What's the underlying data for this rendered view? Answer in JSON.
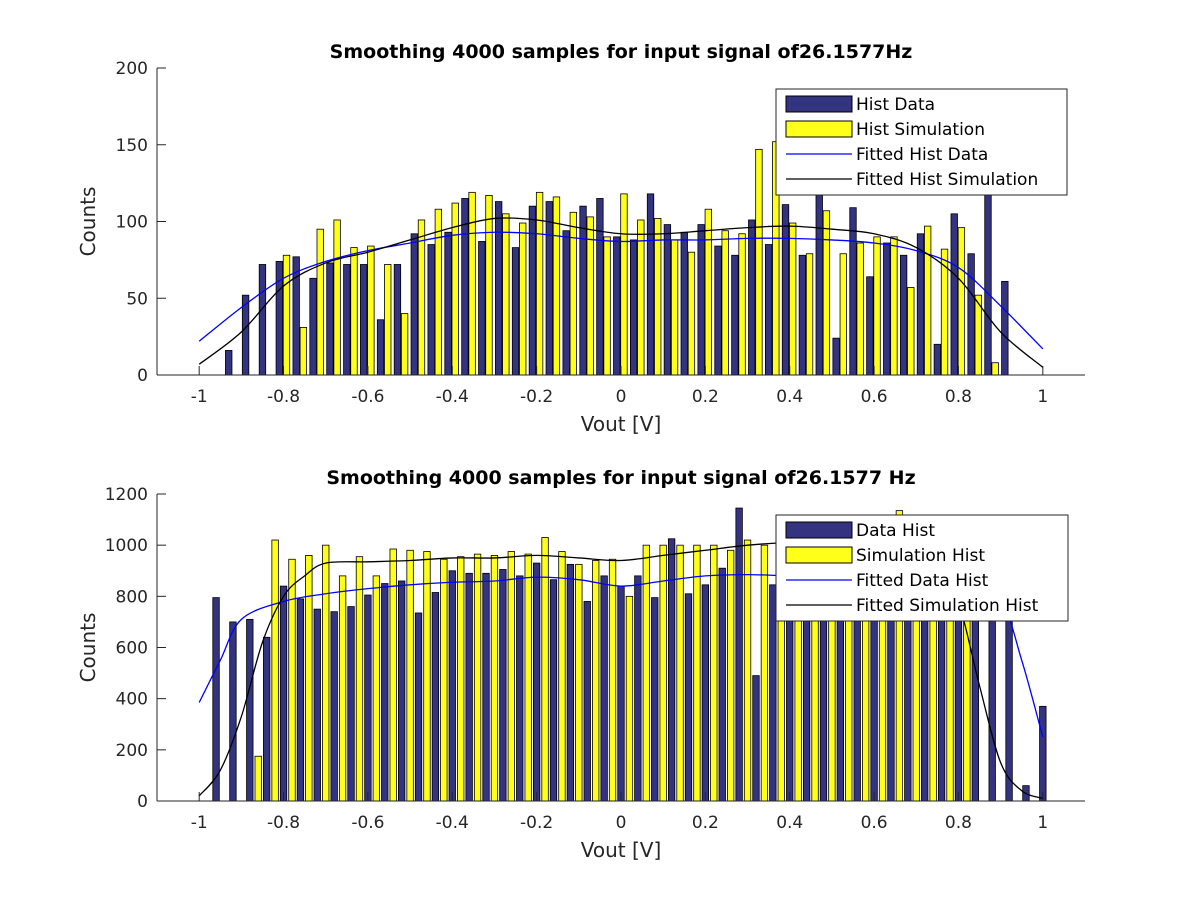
{
  "colors": {
    "data_bar": "#333380",
    "sim_bar": "#ffff1a",
    "fit_data": "#0000ff",
    "fit_sim": "#000000"
  },
  "chart_data": [
    {
      "type": "bar",
      "title": "Smoothing 4000 samples for input signal of26.1577Hz",
      "xlabel": "Vout [V]",
      "ylabel": "Counts",
      "xlim": [
        -1.1,
        1.1
      ],
      "ylim": [
        0,
        200
      ],
      "xticks": [
        -1,
        -0.8,
        -0.6,
        -0.4,
        -0.2,
        0,
        0.2,
        0.4,
        0.6,
        0.8,
        1
      ],
      "yticks": [
        0,
        50,
        100,
        150,
        200
      ],
      "legend_position": "top-right",
      "series": [
        {
          "name": "Hist Data",
          "kind": "bar",
          "x": [
            -0.93,
            -0.89,
            -0.85,
            -0.81,
            -0.77,
            -0.73,
            -0.69,
            -0.65,
            -0.61,
            -0.57,
            -0.53,
            -0.49,
            -0.45,
            -0.41,
            -0.37,
            -0.33,
            -0.29,
            -0.25,
            -0.21,
            -0.17,
            -0.13,
            -0.09,
            -0.05,
            -0.01,
            0.03,
            0.07,
            0.11,
            0.15,
            0.19,
            0.23,
            0.27,
            0.31,
            0.35,
            0.39,
            0.43,
            0.47,
            0.51,
            0.55,
            0.59,
            0.63,
            0.67,
            0.71,
            0.75,
            0.79,
            0.83,
            0.87,
            0.91
          ],
          "values": [
            16,
            52,
            72,
            74,
            77,
            63,
            73,
            72,
            72,
            36,
            72,
            92,
            85,
            93,
            115,
            87,
            113,
            83,
            110,
            113,
            94,
            110,
            115,
            90,
            88,
            118,
            98,
            93,
            98,
            84,
            78,
            101,
            85,
            111,
            78,
            153,
            24,
            109,
            64,
            86,
            78,
            92,
            20,
            105,
            79,
            120,
            61
          ]
        },
        {
          "name": "Hist Simulation",
          "kind": "bar",
          "x": [
            -0.913,
            -0.873,
            -0.833,
            -0.793,
            -0.753,
            -0.713,
            -0.673,
            -0.633,
            -0.593,
            -0.553,
            -0.513,
            -0.473,
            -0.433,
            -0.393,
            -0.353,
            -0.313,
            -0.273,
            -0.233,
            -0.193,
            -0.153,
            -0.113,
            -0.073,
            -0.033,
            0.007,
            0.047,
            0.087,
            0.127,
            0.167,
            0.207,
            0.247,
            0.287,
            0.327,
            0.367,
            0.407,
            0.447,
            0.487,
            0.527,
            0.567,
            0.607,
            0.647,
            0.687,
            0.727,
            0.767,
            0.807,
            0.847,
            0.887,
            0.927
          ],
          "values": [
            0,
            0,
            0,
            78,
            31,
            95,
            101,
            83,
            84,
            72,
            40,
            101,
            108,
            112,
            119,
            117,
            105,
            99,
            119,
            116,
            106,
            103,
            90,
            118,
            101,
            102,
            88,
            80,
            108,
            94,
            92,
            147,
            152,
            99,
            79,
            107,
            79,
            86,
            90,
            90,
            57,
            97,
            82,
            96,
            52,
            8,
            0
          ]
        },
        {
          "name": "Fitted Hist Data",
          "kind": "line",
          "x": [
            -1,
            -0.9,
            -0.8,
            -0.7,
            -0.6,
            -0.5,
            -0.4,
            -0.3,
            -0.2,
            -0.1,
            0,
            0.1,
            0.2,
            0.3,
            0.4,
            0.5,
            0.6,
            0.7,
            0.8,
            0.9,
            1
          ],
          "values": [
            22,
            44,
            63,
            74,
            81,
            86,
            91,
            93,
            92,
            89,
            87,
            88,
            88,
            89,
            89,
            88,
            86,
            81,
            70,
            45,
            17
          ]
        },
        {
          "name": "Fitted Hist Simulation",
          "kind": "line",
          "x": [
            -1,
            -0.9,
            -0.8,
            -0.7,
            -0.6,
            -0.5,
            -0.4,
            -0.3,
            -0.2,
            -0.1,
            0,
            0.1,
            0.2,
            0.3,
            0.4,
            0.5,
            0.6,
            0.7,
            0.8,
            0.9,
            1
          ],
          "values": [
            7,
            28,
            58,
            73,
            80,
            88,
            96,
            102,
            101,
            96,
            92,
            92,
            94,
            96,
            97,
            95,
            92,
            83,
            63,
            28,
            5
          ]
        }
      ]
    },
    {
      "type": "bar",
      "title": "Smoothing 4000 samples for input signal of26.1577 Hz",
      "xlabel": "Vout [V]",
      "ylabel": "Counts",
      "xlim": [
        -1.1,
        1.1
      ],
      "ylim": [
        0,
        1200
      ],
      "xticks": [
        -1,
        -0.8,
        -0.6,
        -0.4,
        -0.2,
        0,
        0.2,
        0.4,
        0.6,
        0.8,
        1
      ],
      "yticks": [
        0,
        200,
        400,
        600,
        800,
        1000,
        1200
      ],
      "legend_position": "top-right",
      "series": [
        {
          "name": "Data Hist",
          "kind": "bar",
          "x": [
            -0.96,
            -0.92,
            -0.88,
            -0.84,
            -0.8,
            -0.76,
            -0.72,
            -0.68,
            -0.64,
            -0.6,
            -0.56,
            -0.52,
            -0.48,
            -0.44,
            -0.4,
            -0.36,
            -0.32,
            -0.28,
            -0.24,
            -0.2,
            -0.16,
            -0.12,
            -0.08,
            -0.04,
            0,
            0.04,
            0.08,
            0.12,
            0.16,
            0.2,
            0.24,
            0.28,
            0.32,
            0.36,
            0.4,
            0.44,
            0.48,
            0.52,
            0.56,
            0.6,
            0.64,
            0.68,
            0.72,
            0.76,
            0.8,
            0.84,
            0.88,
            0.92,
            0.96,
            1.0
          ],
          "values": [
            795,
            700,
            710,
            640,
            840,
            790,
            750,
            740,
            760,
            805,
            850,
            860,
            735,
            815,
            900,
            890,
            890,
            905,
            880,
            930,
            865,
            925,
            780,
            880,
            840,
            880,
            795,
            1025,
            810,
            845,
            910,
            1145,
            490,
            845,
            990,
            990,
            930,
            930,
            920,
            920,
            930,
            930,
            930,
            930,
            920,
            920,
            930,
            910,
            60,
            370
          ]
        },
        {
          "name": "Simulation Hist",
          "kind": "bar",
          "x": [
            -0.86,
            -0.82,
            -0.78,
            -0.74,
            -0.7,
            -0.66,
            -0.62,
            -0.58,
            -0.54,
            -0.5,
            -0.46,
            -0.42,
            -0.38,
            -0.34,
            -0.3,
            -0.26,
            -0.22,
            -0.18,
            -0.14,
            -0.1,
            -0.06,
            -0.02,
            0.02,
            0.06,
            0.1,
            0.14,
            0.18,
            0.22,
            0.26,
            0.3,
            0.34,
            0.38,
            0.42,
            0.46,
            0.5,
            0.54,
            0.58,
            0.62,
            0.66,
            0.7,
            0.74,
            0.78,
            0.82
          ],
          "values": [
            175,
            1020,
            945,
            960,
            1000,
            880,
            955,
            880,
            985,
            980,
            975,
            945,
            955,
            965,
            960,
            975,
            965,
            1030,
            975,
            925,
            940,
            945,
            800,
            1000,
            1000,
            1000,
            1000,
            1000,
            980,
            1020,
            1000,
            980,
            980,
            980,
            1000,
            1000,
            1000,
            1000,
            1135,
            1000,
            1000,
            1000,
            970
          ]
        },
        {
          "name": "Fitted Data Hist",
          "kind": "line",
          "x": [
            -1,
            -0.95,
            -0.9,
            -0.8,
            -0.7,
            -0.6,
            -0.5,
            -0.4,
            -0.3,
            -0.2,
            -0.1,
            0,
            0.1,
            0.2,
            0.3,
            0.4,
            0.5,
            0.6,
            0.7,
            0.8,
            0.9,
            0.95,
            1
          ],
          "values": [
            385,
            550,
            710,
            780,
            810,
            830,
            845,
            855,
            860,
            875,
            865,
            840,
            860,
            880,
            885,
            880,
            880,
            900,
            920,
            900,
            780,
            550,
            250
          ]
        },
        {
          "name": "Fitted Simulation Hist",
          "kind": "line",
          "x": [
            -1,
            -0.95,
            -0.9,
            -0.85,
            -0.8,
            -0.75,
            -0.7,
            -0.6,
            -0.5,
            -0.4,
            -0.3,
            -0.2,
            -0.1,
            0,
            0.1,
            0.2,
            0.3,
            0.4,
            0.5,
            0.6,
            0.7,
            0.75,
            0.8,
            0.85,
            0.9,
            0.95,
            1
          ],
          "values": [
            20,
            120,
            330,
            620,
            800,
            880,
            930,
            935,
            940,
            950,
            950,
            960,
            950,
            940,
            960,
            980,
            1000,
            1010,
            1010,
            1010,
            990,
            940,
            780,
            450,
            150,
            40,
            10
          ]
        }
      ]
    }
  ]
}
